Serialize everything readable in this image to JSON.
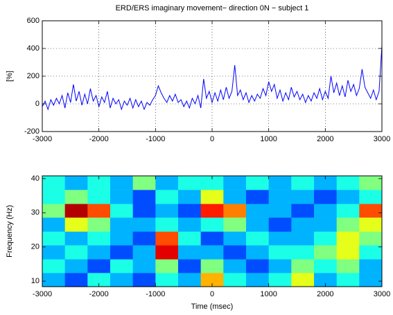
{
  "chart_data": [
    {
      "type": "line",
      "title": "ERD/ERS imaginary movement− direction 0N − subject 1",
      "ylabel": "[%]",
      "x": [
        -3000,
        -2950,
        -2900,
        -2850,
        -2800,
        -2750,
        -2700,
        -2650,
        -2600,
        -2550,
        -2500,
        -2450,
        -2400,
        -2350,
        -2300,
        -2250,
        -2200,
        -2150,
        -2100,
        -2050,
        -2000,
        -1950,
        -1900,
        -1850,
        -1800,
        -1750,
        -1700,
        -1650,
        -1600,
        -1550,
        -1500,
        -1450,
        -1400,
        -1350,
        -1300,
        -1250,
        -1200,
        -1150,
        -1100,
        -1050,
        -1000,
        -950,
        -900,
        -850,
        -800,
        -750,
        -700,
        -650,
        -600,
        -550,
        -500,
        -450,
        -400,
        -350,
        -300,
        -250,
        -200,
        -150,
        -100,
        -50,
        0,
        50,
        100,
        150,
        200,
        250,
        300,
        350,
        400,
        450,
        500,
        550,
        600,
        650,
        700,
        750,
        800,
        850,
        900,
        950,
        1000,
        1050,
        1100,
        1150,
        1200,
        1250,
        1300,
        1350,
        1400,
        1450,
        1500,
        1550,
        1600,
        1650,
        1700,
        1750,
        1800,
        1850,
        1900,
        1950,
        2000,
        2050,
        2100,
        2150,
        2200,
        2250,
        2300,
        2350,
        2400,
        2450,
        2500,
        2550,
        2600,
        2650,
        2700,
        2750,
        2800,
        2850,
        2900,
        2950,
        3000
      ],
      "values": [
        -20,
        20,
        -40,
        30,
        -10,
        40,
        0,
        60,
        -30,
        80,
        10,
        140,
        20,
        90,
        -10,
        70,
        0,
        110,
        20,
        60,
        -20,
        50,
        10,
        90,
        -30,
        40,
        0,
        30,
        -40,
        20,
        -10,
        40,
        -30,
        30,
        -20,
        20,
        -40,
        10,
        -10,
        30,
        60,
        130,
        80,
        40,
        10,
        60,
        20,
        70,
        10,
        30,
        -20,
        20,
        -30,
        40,
        0,
        60,
        -30,
        180,
        40,
        90,
        10,
        80,
        20,
        100,
        30,
        120,
        40,
        90,
        280,
        60,
        100,
        30,
        80,
        10,
        60,
        20,
        70,
        40,
        110,
        60,
        160,
        90,
        140,
        40,
        100,
        20,
        80,
        30,
        120,
        50,
        90,
        30,
        70,
        10,
        60,
        20,
        80,
        40,
        110,
        30,
        90,
        40,
        200,
        80,
        150,
        60,
        130,
        50,
        170,
        90,
        140,
        60,
        110,
        250,
        120,
        80,
        40,
        100,
        30,
        90,
        420
      ],
      "color": "#0000ff",
      "xlim": [
        -3000,
        3000
      ],
      "xticks": [
        -3000,
        -2000,
        -1000,
        0,
        1000,
        2000,
        3000
      ],
      "ylim": [
        -200,
        600
      ],
      "yticks": [
        -200,
        0,
        200,
        400,
        600
      ],
      "grid": true
    },
    {
      "type": "heatmap",
      "ylabel": "Frequency (Hz)",
      "xlabel": "Time (msec)",
      "colormap": "jet",
      "x": [
        -2800,
        -2400,
        -2000,
        -1600,
        -1200,
        -800,
        -400,
        0,
        400,
        800,
        1200,
        1600,
        2000,
        2400,
        2800
      ],
      "y": [
        10.4,
        14.5,
        18.5,
        22.6,
        26.6,
        30.7,
        34.7,
        38.8
      ],
      "z": [
        [
          0.3,
          0.2,
          0.4,
          0.3,
          0.2,
          0.4,
          0.3,
          0.7,
          0.4,
          0.3,
          0.4,
          0.6,
          0.3,
          0.4,
          0.3
        ],
        [
          0.4,
          0.3,
          0.2,
          0.4,
          0.3,
          0.5,
          0.2,
          0.5,
          0.3,
          0.2,
          0.3,
          0.5,
          0.4,
          0.5,
          0.3
        ],
        [
          0.3,
          0.4,
          0.3,
          0.2,
          0.3,
          0.9,
          0.3,
          0.3,
          0.2,
          0.3,
          0.4,
          0.4,
          0.5,
          0.6,
          0.4
        ],
        [
          0.4,
          0.3,
          0.4,
          0.3,
          0.2,
          0.8,
          0.4,
          0.2,
          0.3,
          0.4,
          0.3,
          0.3,
          0.4,
          0.6,
          0.5
        ],
        [
          0.3,
          0.6,
          0.5,
          0.3,
          0.3,
          0.4,
          0.3,
          0.4,
          0.5,
          0.3,
          0.2,
          0.3,
          0.3,
          0.5,
          0.6
        ],
        [
          0.5,
          0.95,
          0.8,
          0.4,
          0.2,
          0.3,
          0.2,
          0.85,
          0.75,
          0.3,
          0.3,
          0.2,
          0.3,
          0.4,
          0.8
        ],
        [
          0.4,
          0.5,
          0.4,
          0.3,
          0.2,
          0.4,
          0.3,
          0.6,
          0.3,
          0.2,
          0.3,
          0.3,
          0.2,
          0.3,
          0.4
        ],
        [
          0.4,
          0.3,
          0.4,
          0.3,
          0.5,
          0.3,
          0.4,
          0.4,
          0.3,
          0.4,
          0.3,
          0.4,
          0.3,
          0.4,
          0.5
        ]
      ],
      "xlim": [
        -3000,
        3000
      ],
      "xticks": [
        -3000,
        -2000,
        -1000,
        0,
        1000,
        2000,
        3000
      ],
      "ylim": [
        8.4,
        40.8
      ],
      "yticks": [
        10,
        20,
        30,
        40
      ],
      "grid": false
    }
  ]
}
